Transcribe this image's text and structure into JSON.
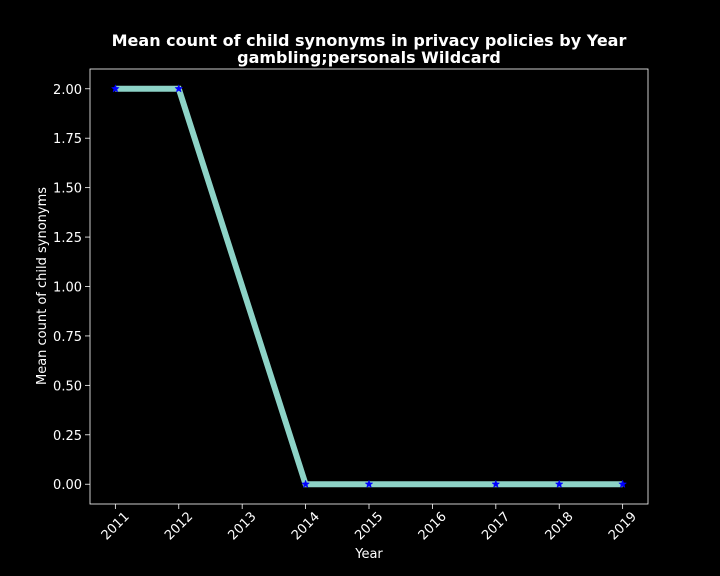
{
  "chart_data": {
    "type": "line",
    "title": "Mean count of child synonyms in privacy policies by Year",
    "subtitle": "gambling;personals Wildcard",
    "xlabel": "Year",
    "ylabel": "Mean count of child synonyms",
    "x_ticks": [
      "2011",
      "2012",
      "2013",
      "2014",
      "2015",
      "2016",
      "2017",
      "2018",
      "2019"
    ],
    "y_ticks": [
      "0.00",
      "0.25",
      "0.50",
      "0.75",
      "1.00",
      "1.25",
      "1.50",
      "1.75",
      "2.00"
    ],
    "xlim": [
      2010.6,
      2019.4
    ],
    "ylim": [
      -0.1,
      2.1
    ],
    "grid": false,
    "series": [
      {
        "x": [
          2011,
          2012,
          2014,
          2015,
          2017,
          2018,
          2019
        ],
        "y": [
          2.0,
          2.0,
          0.0,
          0.0,
          0.0,
          0.0,
          0.0
        ],
        "line_color": "#8dd3c7",
        "marker_color": "#0000ff",
        "marker": "star"
      }
    ],
    "colors": {
      "background": "#000000",
      "foreground": "#ffffff"
    }
  }
}
